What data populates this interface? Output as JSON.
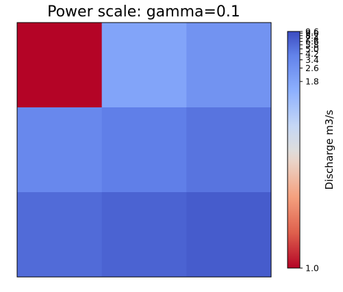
{
  "chart_data": {
    "type": "heatmap",
    "title": "Power scale: gamma=0.1",
    "colormap": "coolwarm_r",
    "norm": {
      "type": "power",
      "gamma": 0.1,
      "vmin": 1.0,
      "vmax": 9.6
    },
    "rows": 3,
    "cols": 3,
    "values": [
      [
        1.0,
        1.8,
        2.6
      ],
      [
        3.4,
        4.2,
        5.0
      ],
      [
        5.8,
        6.6,
        7.4
      ]
    ],
    "xticks": [],
    "yticks": [],
    "colorbar": {
      "label": "Discharge m3/s",
      "ticks": [
        1.0,
        1.8,
        2.6,
        3.4,
        4.2,
        5.0,
        5.8,
        6.6,
        7.4,
        8.2,
        9.0,
        9.6
      ],
      "tick_labels": [
        "1.0",
        "1.8",
        "2.6",
        "3.4",
        "4.2",
        "5.0",
        "5.8",
        "6.6",
        "7.4",
        "8.2",
        "9.0",
        "9.6"
      ]
    },
    "colors": {
      "low": "#b40426",
      "mid": "#dddddd",
      "high": "#3b4cc0"
    }
  }
}
